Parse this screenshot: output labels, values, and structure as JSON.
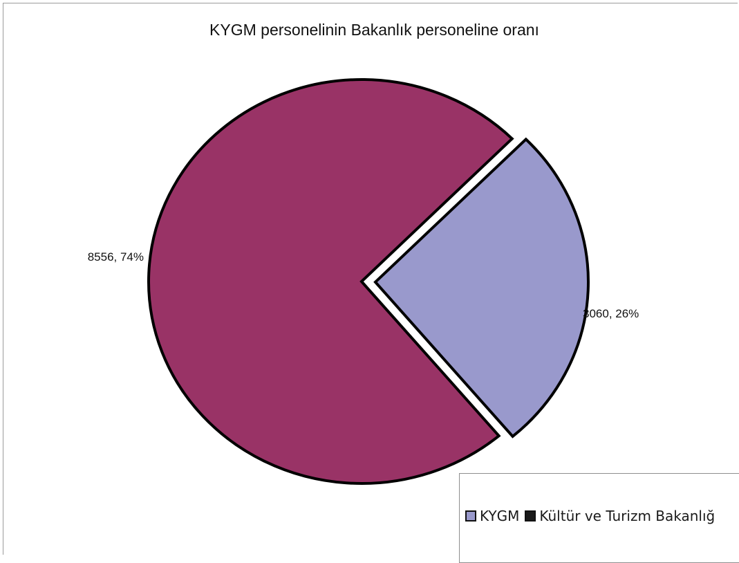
{
  "chart_data": {
    "type": "pie",
    "title": "KYGM personelinin Bakanlık personeline oranı",
    "slices": [
      {
        "name": "KYGM",
        "value": 3060,
        "percent": 26,
        "label": "3060, 26%",
        "color": "#9999cc",
        "exploded": true
      },
      {
        "name": "Kültür ve Turizm Bakanlığ",
        "value": 8556,
        "percent": 74,
        "label": "8556, 74%",
        "color": "#993366",
        "exploded": false
      }
    ],
    "legend": {
      "placement": "bottom-right",
      "entries": [
        "KYGM",
        "Kültür ve Turizm Bakanlığ"
      ]
    }
  }
}
